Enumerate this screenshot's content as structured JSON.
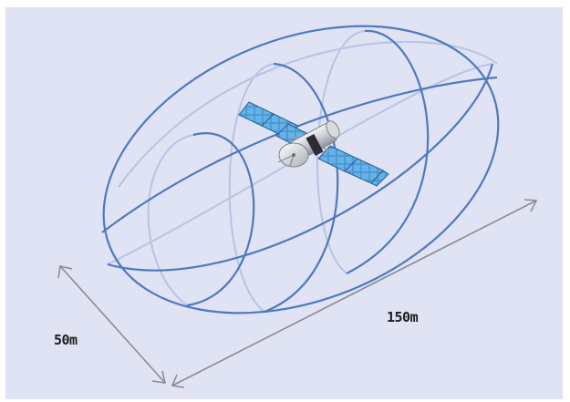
{
  "figure": {
    "length_label": "150m",
    "width_label": "50m",
    "colors": {
      "background": "#dfe3f3",
      "envelope_front": "#4f79bd",
      "envelope_back": "#b7c4e4",
      "arrow": "#8a8d96",
      "solar_panel": "#3d8fd0",
      "label_text": "#1d1d1f"
    },
    "objects": [
      "ellipsoid-keep-out-envelope",
      "satellite-icon",
      "dimension-arrow"
    ]
  }
}
